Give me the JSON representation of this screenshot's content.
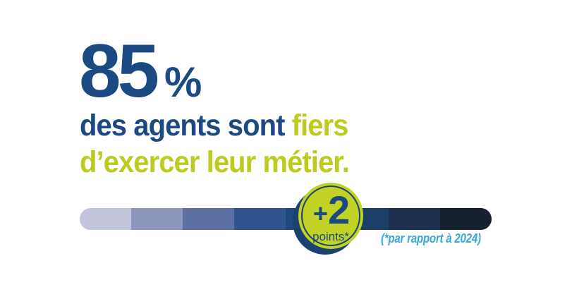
{
  "colors": {
    "primary_blue": "#1b4a82",
    "accent_green": "#bccb1e",
    "badge_green": "#c2d226",
    "badge_navy": "#1b4270",
    "caption_light_blue": "#3ba7d9",
    "background": "#ffffff"
  },
  "headline": {
    "value": "85",
    "unit": "%"
  },
  "subtitle": {
    "line1_blue": "des agents sont ",
    "line1_green": "fiers",
    "line2_green": "d’exercer leur métier."
  },
  "badge": {
    "plus": "+",
    "value": "2",
    "label": "points*"
  },
  "caption": "(*par rapport à 2024)",
  "chart_data": {
    "type": "bar",
    "title": "85 % des agents sont fiers d’exercer leur métier.",
    "value_percent": 85,
    "delta_points": "+2 points*",
    "delta_note": "(*par rapport à 2024)",
    "segments": 8,
    "segment_colors": [
      "#c1c4da",
      "#8d96bd",
      "#5d70a4",
      "#30548e",
      "#1f4a7f",
      "#1b3f66",
      "#1d3050",
      "#16202f"
    ],
    "legend_position": "none",
    "grid": false
  }
}
